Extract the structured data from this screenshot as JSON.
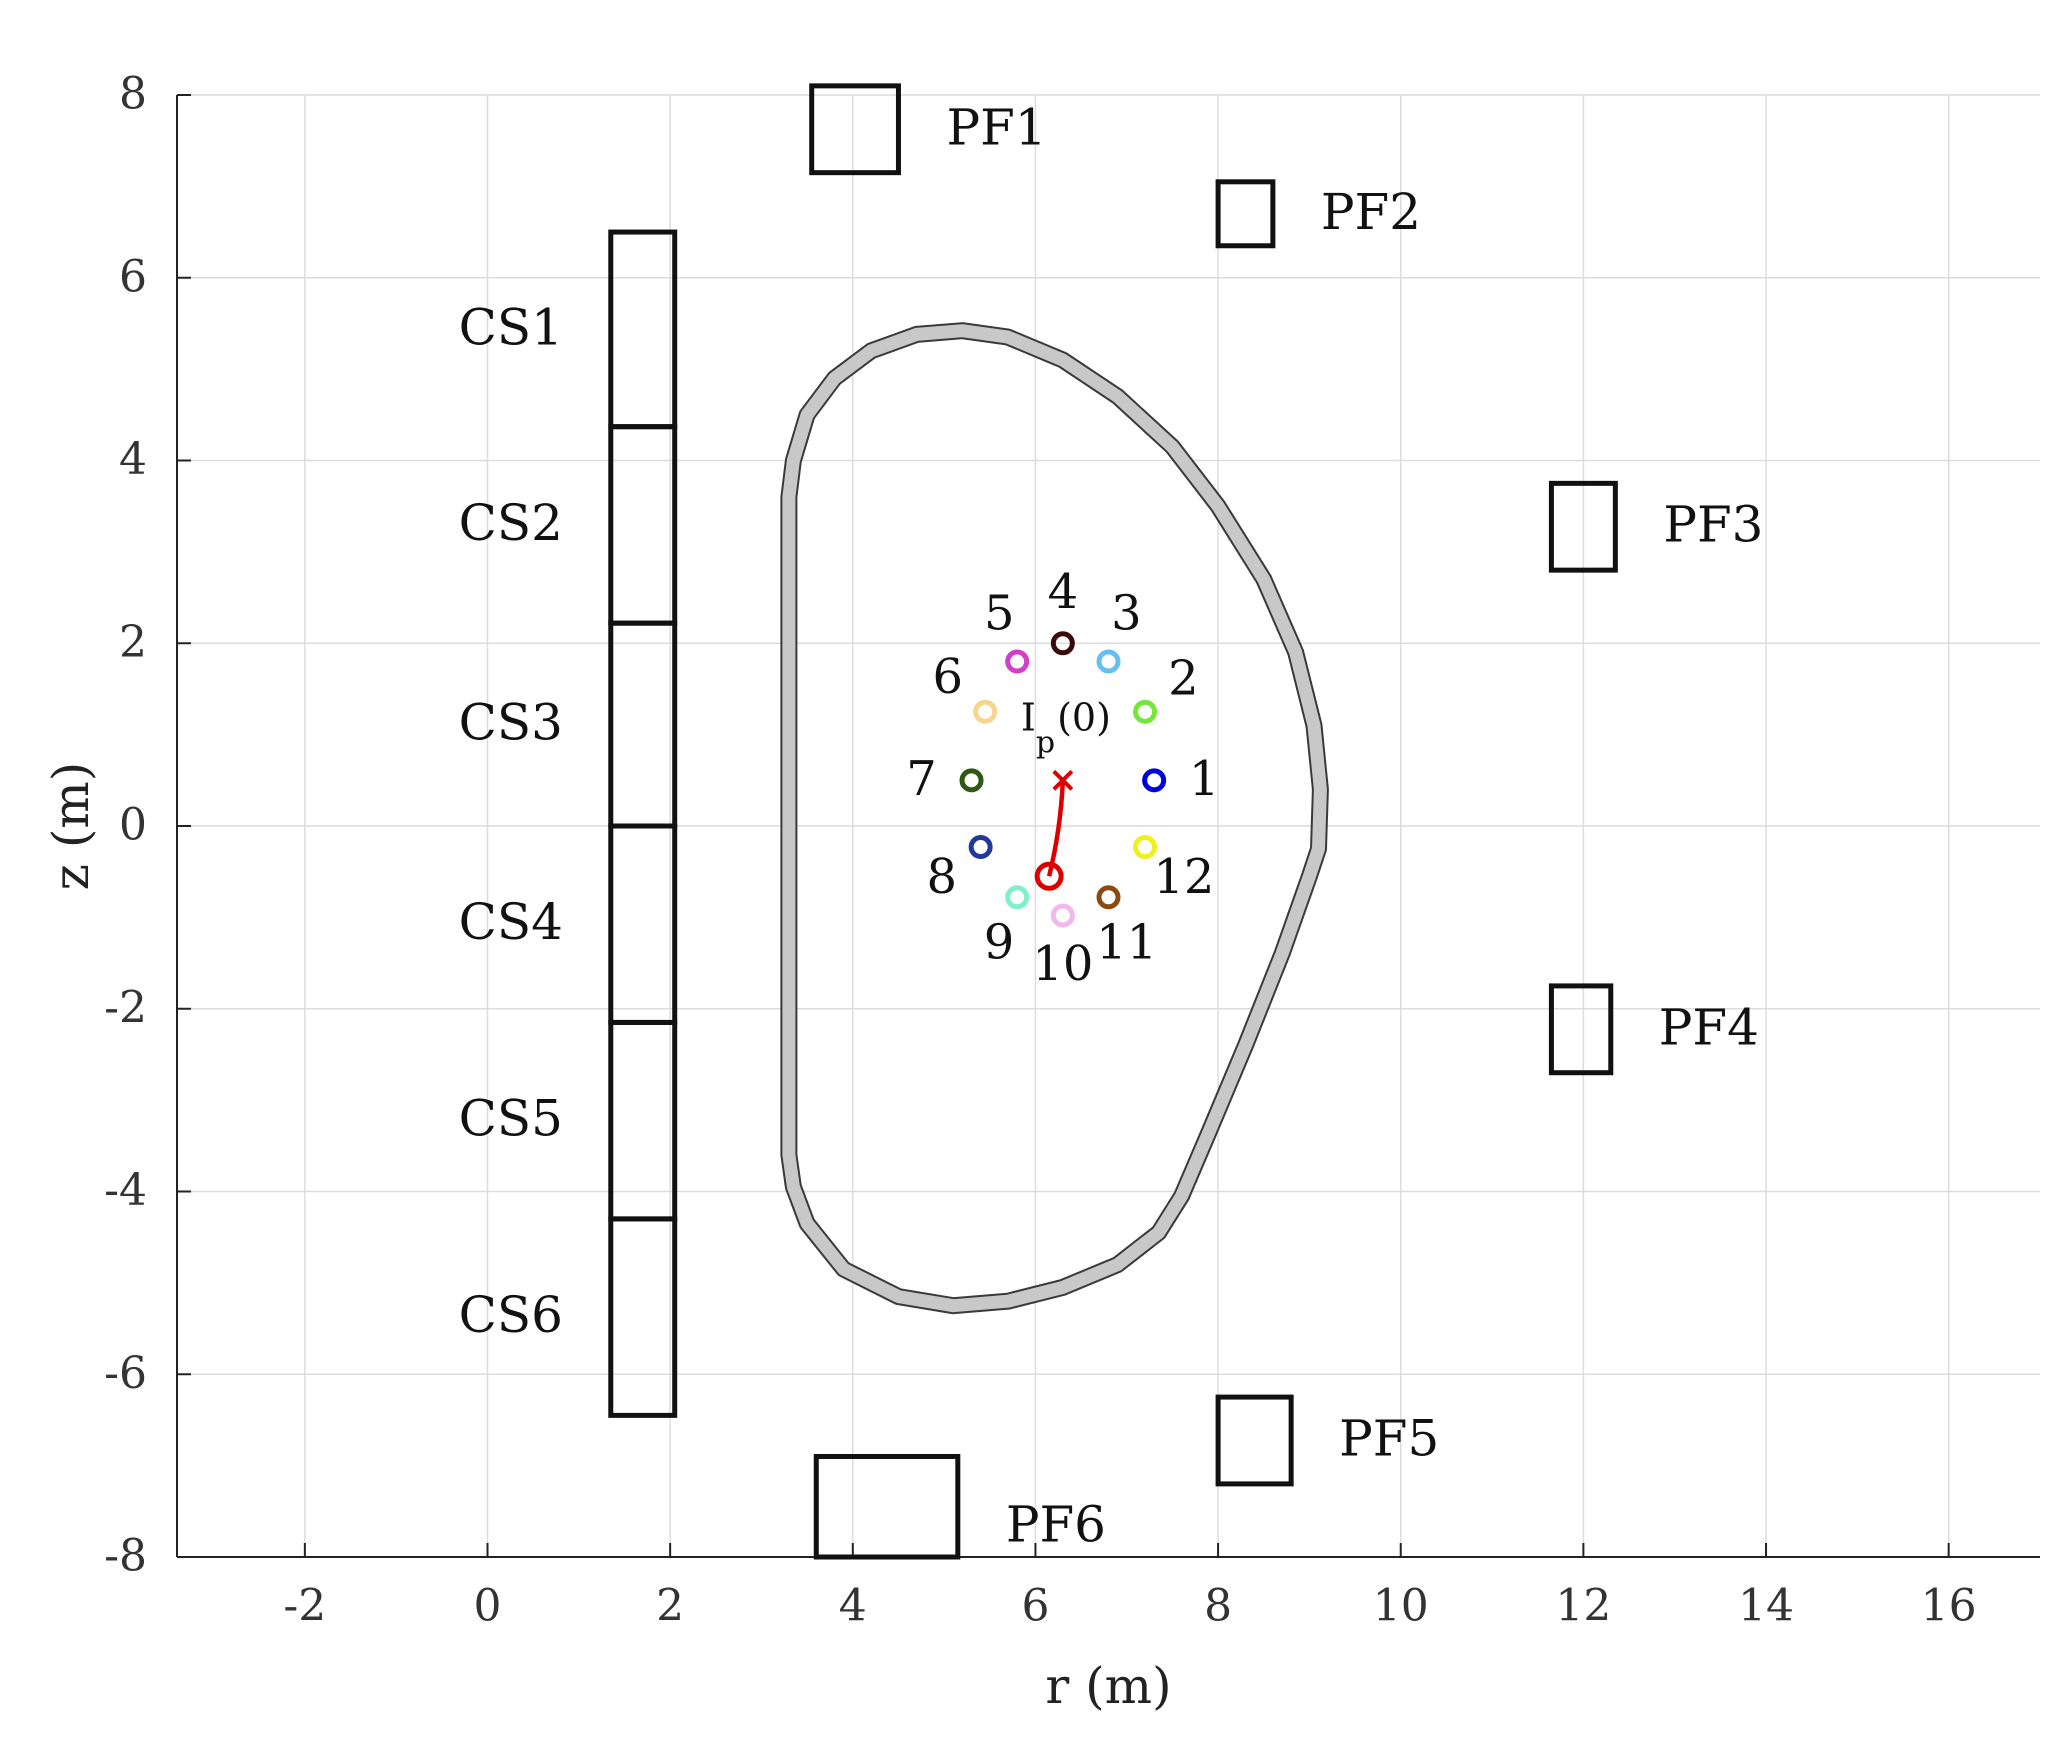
{
  "chart_data": {
    "type": "scatter",
    "title": "",
    "xlabel": "r (m)",
    "ylabel": "z (m)",
    "xlim": [
      -3.4,
      17
    ],
    "ylim": [
      -8,
      8
    ],
    "grid": true,
    "xticks": [
      -2,
      0,
      2,
      4,
      6,
      8,
      10,
      12,
      14,
      16
    ],
    "yticks": [
      -8,
      -6,
      -4,
      -2,
      0,
      2,
      4,
      6,
      8
    ],
    "coils": [
      {
        "name": "CS1",
        "r_min": 1.35,
        "r_max": 2.05,
        "z_min": 4.37,
        "z_max": 6.5
      },
      {
        "name": "CS2",
        "r_min": 1.35,
        "r_max": 2.05,
        "z_min": 2.22,
        "z_max": 4.37
      },
      {
        "name": "CS3",
        "r_min": 1.35,
        "r_max": 2.05,
        "z_min": 0.0,
        "z_max": 2.22
      },
      {
        "name": "CS4",
        "r_min": 1.35,
        "r_max": 2.05,
        "z_min": -2.15,
        "z_max": 0.0
      },
      {
        "name": "CS5",
        "r_min": 1.35,
        "r_max": 2.05,
        "z_min": -4.3,
        "z_max": -2.15
      },
      {
        "name": "CS6",
        "r_min": 1.35,
        "r_max": 2.05,
        "z_min": -6.45,
        "z_max": -4.3
      },
      {
        "name": "PF1",
        "r_min": 3.55,
        "r_max": 4.5,
        "z_min": 7.15,
        "z_max": 8.1
      },
      {
        "name": "PF2",
        "r_min": 8.0,
        "r_max": 8.6,
        "z_min": 6.35,
        "z_max": 7.05
      },
      {
        "name": "PF3",
        "r_min": 11.65,
        "r_max": 12.35,
        "z_min": 2.8,
        "z_max": 3.75
      },
      {
        "name": "PF4",
        "r_min": 11.65,
        "r_max": 12.3,
        "z_min": -2.7,
        "z_max": -1.75
      },
      {
        "name": "PF5",
        "r_min": 8.0,
        "r_max": 8.8,
        "z_min": -7.2,
        "z_max": -6.25
      },
      {
        "name": "PF6",
        "r_min": 3.6,
        "r_max": 5.15,
        "z_min": -8.0,
        "z_max": -6.9
      }
    ],
    "wall_outline": [
      [
        3.3,
        3.6
      ],
      [
        3.35,
        4.0
      ],
      [
        3.5,
        4.5
      ],
      [
        3.8,
        4.9
      ],
      [
        4.2,
        5.2
      ],
      [
        4.7,
        5.38
      ],
      [
        5.2,
        5.42
      ],
      [
        5.7,
        5.35
      ],
      [
        6.3,
        5.1
      ],
      [
        6.9,
        4.7
      ],
      [
        7.5,
        4.15
      ],
      [
        8.0,
        3.5
      ],
      [
        8.5,
        2.7
      ],
      [
        8.85,
        1.9
      ],
      [
        9.05,
        1.1
      ],
      [
        9.12,
        0.4
      ],
      [
        9.1,
        -0.25
      ],
      [
        9.0,
        -0.55
      ],
      [
        8.7,
        -1.4
      ],
      [
        8.3,
        -2.4
      ],
      [
        7.9,
        -3.35
      ],
      [
        7.6,
        -4.05
      ],
      [
        7.35,
        -4.45
      ],
      [
        6.9,
        -4.8
      ],
      [
        6.3,
        -5.05
      ],
      [
        5.7,
        -5.2
      ],
      [
        5.1,
        -5.25
      ],
      [
        4.5,
        -5.15
      ],
      [
        3.9,
        -4.85
      ],
      [
        3.5,
        -4.35
      ],
      [
        3.35,
        -3.95
      ],
      [
        3.3,
        -3.6
      ]
    ],
    "probes": [
      {
        "label": "1",
        "r": 7.3,
        "z": 0.5,
        "color": "#0000dd"
      },
      {
        "label": "2",
        "r": 7.2,
        "z": 1.25,
        "color": "#77e63a"
      },
      {
        "label": "3",
        "r": 6.8,
        "z": 1.8,
        "color": "#66bff0"
      },
      {
        "label": "4",
        "r": 6.3,
        "z": 2.0,
        "color": "#3a0a0a"
      },
      {
        "label": "5",
        "r": 5.8,
        "z": 1.8,
        "color": "#d040c8"
      },
      {
        "label": "6",
        "r": 5.45,
        "z": 1.25,
        "color": "#f5d58f"
      },
      {
        "label": "7",
        "r": 5.3,
        "z": 0.5,
        "color": "#2c5a12"
      },
      {
        "label": "8",
        "r": 5.4,
        "z": -0.23,
        "color": "#203a9a"
      },
      {
        "label": "9",
        "r": 5.8,
        "z": -0.78,
        "color": "#7ff0c8"
      },
      {
        "label": "10",
        "r": 6.3,
        "z": -0.98,
        "color": "#f2b8ee"
      },
      {
        "label": "11",
        "r": 6.8,
        "z": -0.78,
        "color": "#8b4a12"
      },
      {
        "label": "12",
        "r": 7.2,
        "z": -0.23,
        "color": "#eef020"
      }
    ],
    "plasma_current": {
      "label_main": "I",
      "label_sub": "p",
      "label_suffix": "(0)",
      "start": {
        "r": 6.3,
        "z": 0.5
      },
      "end": {
        "r": 6.15,
        "z": -0.55
      },
      "color": "#dd0000"
    }
  }
}
